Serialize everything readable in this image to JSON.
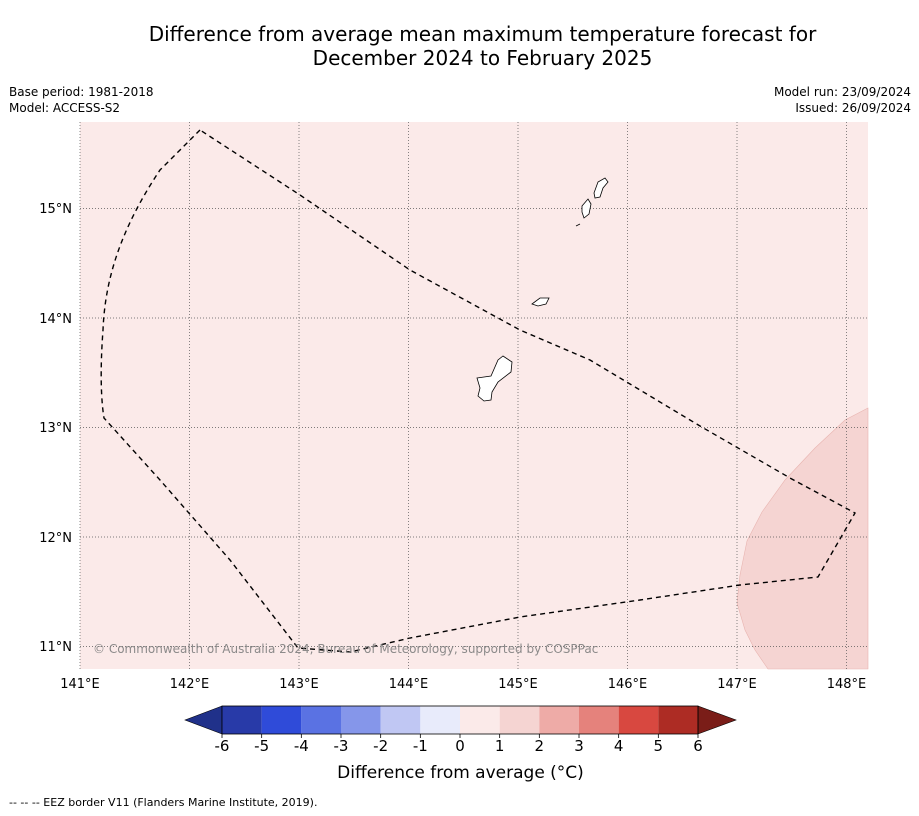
{
  "title_line1": "Difference from average mean maximum temperature forecast for",
  "title_line2": "December 2024 to February 2025",
  "meta_left": {
    "base_period": "Base period: 1981-2018",
    "model": "Model: ACCESS-S2"
  },
  "meta_right": {
    "model_run": "Model run: 23/09/2024",
    "issued": "Issued: 26/09/2024"
  },
  "map": {
    "lon_range": [
      141.0,
      148.2
    ],
    "lat_range": [
      10.8,
      15.8
    ],
    "lon_ticks": [
      141,
      142,
      143,
      144,
      145,
      146,
      147,
      148
    ],
    "lon_tick_labels": [
      "141°E",
      "142°E",
      "143°E",
      "144°E",
      "145°E",
      "146°E",
      "147°E",
      "148°E"
    ],
    "lat_ticks": [
      11,
      12,
      13,
      14,
      15
    ],
    "lat_tick_labels": [
      "11°N",
      "12°N",
      "13°N",
      "14°N",
      "15°N"
    ],
    "grid": true,
    "background_anomaly_class": "0 to 1",
    "background_color": "#fbeae9",
    "warmer_region_class": "1 to 2",
    "warmer_region_color": "#f5d4d2",
    "watermark": "© Commonwealth of Australia 2024, Bureau of Meteorology, supported by COSPPac"
  },
  "colorbar": {
    "tick_labels": [
      "-6",
      "-5",
      "-4",
      "-3",
      "-2",
      "-1",
      "0",
      "1",
      "2",
      "3",
      "4",
      "5",
      "6"
    ],
    "colors": [
      "#283aa8",
      "#2f4bd9",
      "#5a72e3",
      "#8596ea",
      "#c0c7f3",
      "#e8ebfb",
      "#fbeae9",
      "#f5d4d2",
      "#eeaba7",
      "#e5827c",
      "#d84840",
      "#ad2c24"
    ],
    "under_color": "#20318a",
    "over_color": "#7a1d18",
    "label": "Difference from average ($^\\circ$C)",
    "label_display": "Difference from average (°C)"
  },
  "footer": "--  --  -- EEZ border V11 (Flanders Marine Institute, 2019)."
}
